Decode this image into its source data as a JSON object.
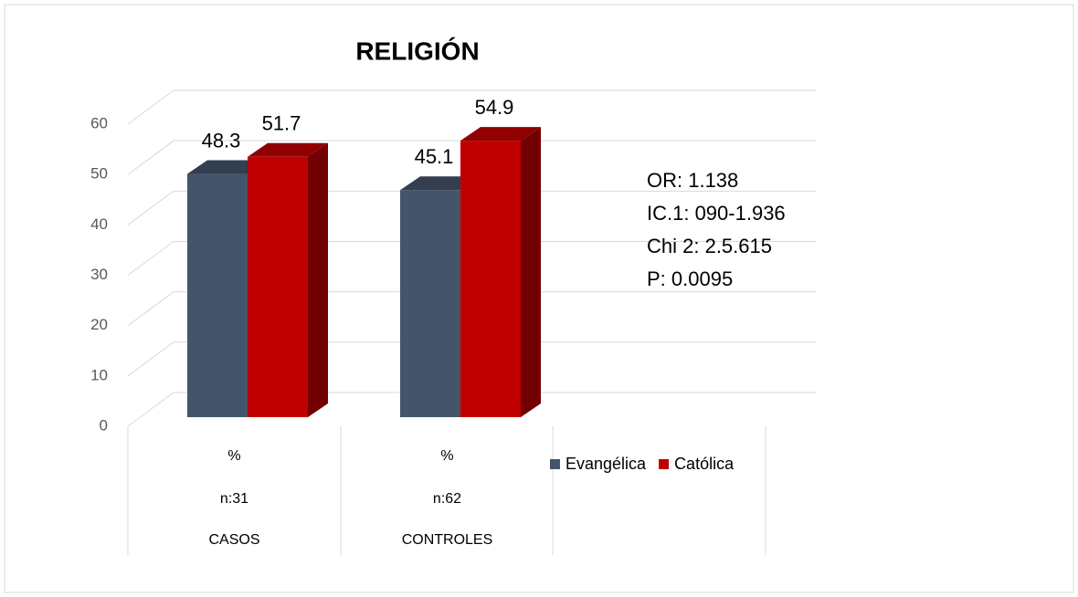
{
  "chart_data": {
    "type": "bar3d",
    "title": "RELIGIÓN",
    "categories": [
      "CASOS",
      "CONTROLES"
    ],
    "category_details": [
      [
        "%",
        "n:31"
      ],
      [
        "%",
        "n:62"
      ]
    ],
    "series": [
      {
        "name": "Evangélica",
        "color": "#44546a",
        "values": [
          48.3,
          45.1
        ]
      },
      {
        "name": "Católica",
        "color": "#c00000",
        "values": [
          51.7,
          54.9
        ]
      }
    ],
    "ylim": [
      0,
      60
    ],
    "yticks": [
      0,
      10,
      20,
      30,
      40,
      50,
      60
    ],
    "grid": true,
    "annotations": [
      "OR: 1.138",
      "IC.1: 090-1.936",
      "Chi 2: 2.5.615",
      "P: 0.0095"
    ],
    "legend": "right"
  }
}
